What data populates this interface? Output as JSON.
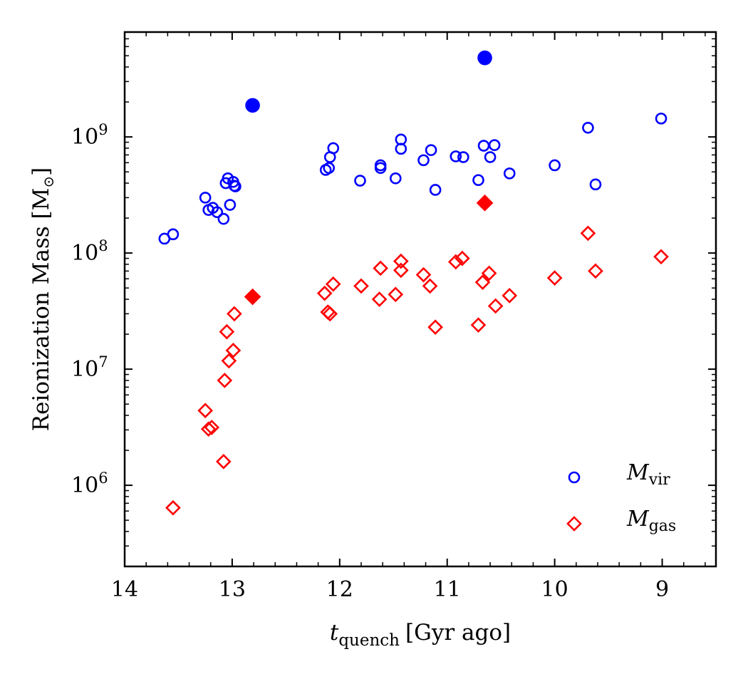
{
  "chart_data": {
    "type": "scatter",
    "title": "",
    "xlabel": {
      "symbol": "t",
      "subscript": "quench",
      "unit": "[Gyr ago]"
    },
    "ylabel": {
      "text": "Reionization Mass [M",
      "sun_symbol": "⊙",
      "close": "]"
    },
    "x_axis": {
      "reversed": true,
      "xlim": [
        14,
        8.5
      ],
      "ticks": [
        14,
        13,
        12,
        11,
        10,
        9
      ],
      "tick_labels": [
        "14",
        "13",
        "12",
        "11",
        "10",
        "9"
      ]
    },
    "y_axis": {
      "scale": "log",
      "ylim": [
        200000.0,
        8000000000.0
      ],
      "major_ticks": [
        1000000.0,
        10000000.0,
        100000000.0,
        1000000000.0
      ],
      "tick_base": "10",
      "tick_exponents": [
        "6",
        "7",
        "8",
        "9"
      ]
    },
    "grid": false,
    "legend": {
      "placement": "lower-right",
      "entries": [
        {
          "symbol": "M",
          "subscript": "vir",
          "marker": "open-circle",
          "color": "#0000ff"
        },
        {
          "symbol": "M",
          "subscript": "gas",
          "marker": "open-diamond",
          "color": "#ff0000"
        }
      ]
    },
    "series": [
      {
        "key": "mvir",
        "marker": "circle",
        "color": "#0000ff",
        "points": [
          {
            "x": 13.63,
            "y": 133000000.0
          },
          {
            "x": 13.55,
            "y": 145000000.0
          },
          {
            "x": 13.25,
            "y": 300000000.0
          },
          {
            "x": 13.22,
            "y": 235000000.0
          },
          {
            "x": 13.18,
            "y": 245000000.0
          },
          {
            "x": 13.14,
            "y": 225000000.0
          },
          {
            "x": 13.08,
            "y": 197000000.0
          },
          {
            "x": 13.06,
            "y": 400000000.0
          },
          {
            "x": 13.04,
            "y": 440000000.0
          },
          {
            "x": 13.02,
            "y": 260000000.0
          },
          {
            "x": 12.99,
            "y": 410000000.0
          },
          {
            "x": 12.98,
            "y": 380000000.0
          },
          {
            "x": 12.97,
            "y": 375000000.0
          },
          {
            "x": 12.13,
            "y": 520000000.0
          },
          {
            "x": 12.1,
            "y": 540000000.0
          },
          {
            "x": 12.09,
            "y": 670000000.0
          },
          {
            "x": 12.06,
            "y": 800000000.0
          },
          {
            "x": 11.81,
            "y": 420000000.0
          },
          {
            "x": 11.62,
            "y": 540000000.0
          },
          {
            "x": 11.62,
            "y": 570000000.0
          },
          {
            "x": 11.48,
            "y": 440000000.0
          },
          {
            "x": 11.43,
            "y": 950000000.0
          },
          {
            "x": 11.43,
            "y": 790000000.0
          },
          {
            "x": 11.22,
            "y": 630000000.0
          },
          {
            "x": 11.15,
            "y": 770000000.0
          },
          {
            "x": 11.11,
            "y": 350000000.0
          },
          {
            "x": 10.92,
            "y": 680000000.0
          },
          {
            "x": 10.85,
            "y": 670000000.0
          },
          {
            "x": 10.71,
            "y": 425000000.0
          },
          {
            "x": 10.66,
            "y": 840000000.0
          },
          {
            "x": 10.6,
            "y": 670000000.0
          },
          {
            "x": 10.56,
            "y": 850000000.0
          },
          {
            "x": 10.42,
            "y": 485000000.0
          },
          {
            "x": 10.0,
            "y": 570000000.0
          },
          {
            "x": 9.69,
            "y": 1200000000.0
          },
          {
            "x": 9.62,
            "y": 390000000.0
          },
          {
            "x": 9.01,
            "y": 1440000000.0
          },
          {
            "x": 12.81,
            "y": 1870000000.0,
            "filled": true
          },
          {
            "x": 10.65,
            "y": 4800000000.0,
            "filled": true
          }
        ]
      },
      {
        "key": "mgas",
        "marker": "diamond",
        "color": "#ff0000",
        "points": [
          {
            "x": 13.55,
            "y": 640000.0
          },
          {
            "x": 13.25,
            "y": 4400000.0
          },
          {
            "x": 13.22,
            "y": 3050000.0
          },
          {
            "x": 13.19,
            "y": 3150000.0
          },
          {
            "x": 13.08,
            "y": 1600000.0
          },
          {
            "x": 13.07,
            "y": 8000000.0
          },
          {
            "x": 13.05,
            "y": 21000000.0
          },
          {
            "x": 13.03,
            "y": 11800000.0
          },
          {
            "x": 12.99,
            "y": 14500000.0
          },
          {
            "x": 12.98,
            "y": 30000000.0
          },
          {
            "x": 12.14,
            "y": 45000000.0
          },
          {
            "x": 12.11,
            "y": 31000000.0
          },
          {
            "x": 12.09,
            "y": 30000000.0
          },
          {
            "x": 12.06,
            "y": 54000000.0
          },
          {
            "x": 11.8,
            "y": 52000000.0
          },
          {
            "x": 11.63,
            "y": 40000000.0
          },
          {
            "x": 11.62,
            "y": 74000000.0
          },
          {
            "x": 11.48,
            "y": 44000000.0
          },
          {
            "x": 11.43,
            "y": 85000000.0
          },
          {
            "x": 11.43,
            "y": 71000000.0
          },
          {
            "x": 11.22,
            "y": 65000000.0
          },
          {
            "x": 11.16,
            "y": 52000000.0
          },
          {
            "x": 11.11,
            "y": 23000000.0
          },
          {
            "x": 10.92,
            "y": 84000000.0
          },
          {
            "x": 10.86,
            "y": 90000000.0
          },
          {
            "x": 10.71,
            "y": 24000000.0
          },
          {
            "x": 10.67,
            "y": 56000000.0
          },
          {
            "x": 10.61,
            "y": 67000000.0
          },
          {
            "x": 10.55,
            "y": 35000000.0
          },
          {
            "x": 10.42,
            "y": 43000000.0
          },
          {
            "x": 10.0,
            "y": 61000000.0
          },
          {
            "x": 9.69,
            "y": 148000000.0
          },
          {
            "x": 9.62,
            "y": 70000000.0
          },
          {
            "x": 9.01,
            "y": 93000000.0
          },
          {
            "x": 12.81,
            "y": 42000000.0,
            "filled": true
          },
          {
            "x": 10.65,
            "y": 270000000.0,
            "filled": true
          }
        ]
      }
    ]
  }
}
